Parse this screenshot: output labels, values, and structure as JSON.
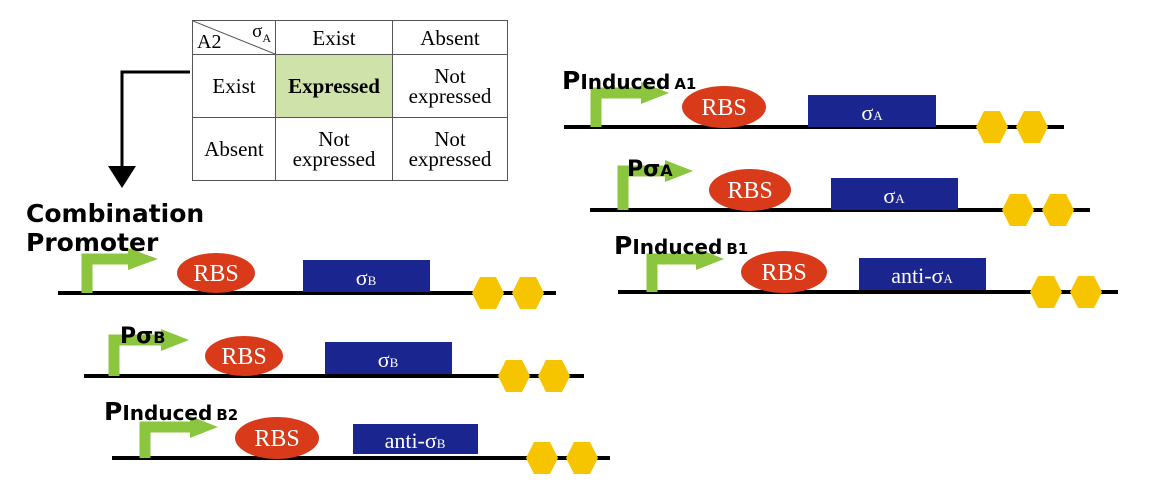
{
  "table": {
    "corner_row_label": "A2",
    "corner_col_label": "σ",
    "corner_col_sub": "A",
    "col_headers": [
      "Exist",
      "Absent"
    ],
    "rows": [
      {
        "label": "Exist",
        "cells": [
          "Expressed",
          "Not expressed"
        ]
      },
      {
        "label": "Absent",
        "cells": [
          "Not expressed",
          "Not expressed"
        ]
      }
    ]
  },
  "combination_label": [
    "Combination",
    "Promoter"
  ],
  "colors": {
    "rbs": "#d93a1a",
    "gene": "#1a2590",
    "promoter": "#8cc63e",
    "terminator": "#f7c500",
    "highlight": "#cfe2a9"
  },
  "constructs": [
    {
      "promoter": "",
      "promoter_sub": "",
      "rbs": "RBS",
      "gene": "σ",
      "gene_sub": "B"
    },
    {
      "promoter": "Pσ",
      "promoter_sub": "B",
      "rbs": "RBS",
      "gene": "σ",
      "gene_sub": "B"
    },
    {
      "promoter": "PInduced",
      "promoter_sub": "B2",
      "rbs": "RBS",
      "gene": "anti-σ",
      "gene_sub": "B"
    },
    {
      "promoter": "PInduced",
      "promoter_sub": "A1",
      "rbs": "RBS",
      "gene": "σ",
      "gene_sub": "A"
    },
    {
      "promoter": "Pσ",
      "promoter_sub": "A",
      "rbs": "RBS",
      "gene": "σ",
      "gene_sub": "A"
    },
    {
      "promoter": "PInduced",
      "promoter_sub": "B1",
      "rbs": "RBS",
      "gene": "anti-σ",
      "gene_sub": "A"
    }
  ]
}
